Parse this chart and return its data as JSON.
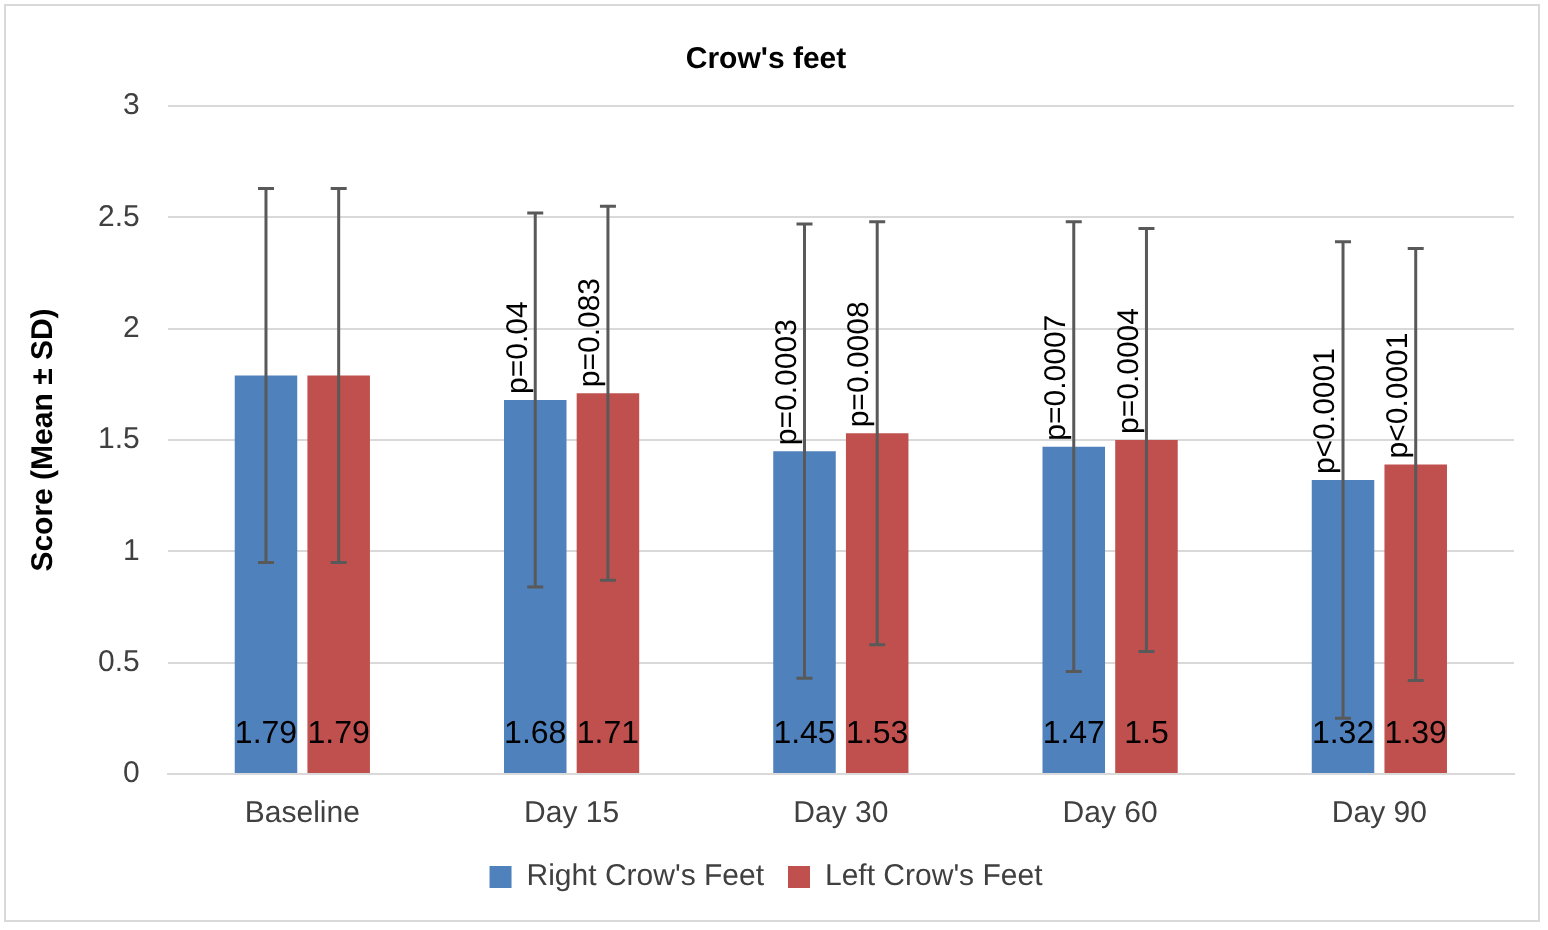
{
  "chart_data": {
    "type": "bar",
    "title": "Crow's feet",
    "ylabel": "Score (Mean ± SD)",
    "categories": [
      "Baseline",
      "Day 15",
      "Day 30",
      "Day 60",
      "Day 90"
    ],
    "series": [
      {
        "name": "Right Crow's Feet",
        "color": "#4f81bd",
        "values": [
          1.79,
          1.68,
          1.45,
          1.47,
          1.32
        ],
        "errors": [
          0.84,
          0.84,
          1.02,
          1.01,
          1.07
        ]
      },
      {
        "name": "Left Crow's Feet",
        "color": "#c0504d",
        "values": [
          1.79,
          1.71,
          1.53,
          1.5,
          1.39
        ],
        "errors": [
          0.84,
          0.84,
          0.95,
          0.95,
          0.97
        ]
      }
    ],
    "ylim": [
      0,
      3
    ],
    "yticks": [
      0,
      0.5,
      1,
      1.5,
      2,
      2.5,
      3
    ],
    "grid": "y",
    "legend": "bottom",
    "data_labels": true,
    "annotations": [
      {
        "text": "p=0.04",
        "x": "Day 15",
        "y": 1.68
      },
      {
        "text": "p=0.083",
        "x": "Day 15",
        "y": 1.71
      },
      {
        "text": "p=0.0003",
        "x": "Day 30",
        "y": 1.45
      },
      {
        "text": "p=0.0008",
        "x": "Day 30",
        "y": 1.53
      },
      {
        "text": "p=0.0007",
        "x": "Day 60",
        "y": 1.47
      },
      {
        "text": "p=0.0004",
        "x": "Day 60",
        "y": 1.5
      },
      {
        "text": "p<0.0001",
        "x": "Day 90",
        "y": 1.32
      },
      {
        "text": "p<0.0001",
        "x": "Day 90",
        "y": 1.39
      }
    ]
  }
}
